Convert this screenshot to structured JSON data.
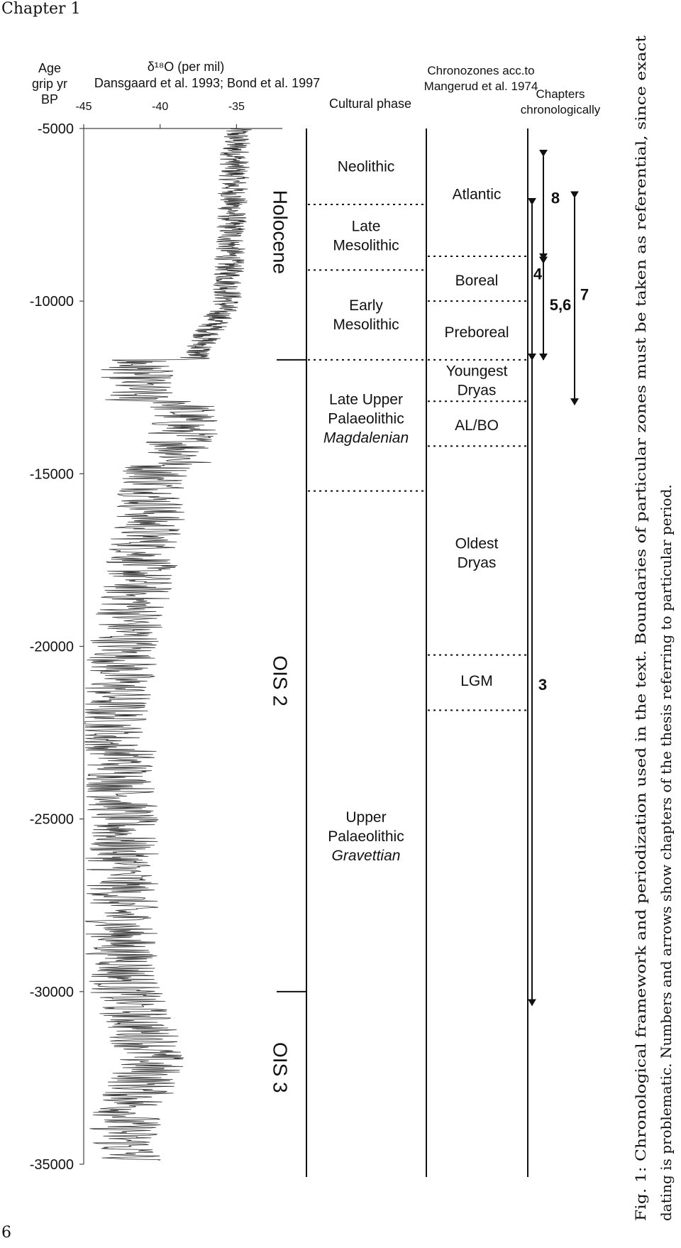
{
  "page": {
    "running_head": "Chapter 1",
    "page_number": "6"
  },
  "figure": {
    "age_axis": {
      "label_lines": [
        "Age",
        "grip yr",
        "BP"
      ],
      "ticks": [
        -5000,
        -10000,
        -15000,
        -20000,
        -25000,
        -30000,
        -35000
      ],
      "range": [
        -5000,
        -35000
      ]
    },
    "d18o_axis": {
      "label": "δ¹⁸O (per mil)",
      "source": "Dansgaard et al. 1993; Bond et al. 1997",
      "ticks": [
        "-45",
        "-40",
        "-35"
      ],
      "range": [
        -45,
        -32
      ]
    },
    "climate_labels": [
      {
        "text": "Holocene",
        "age_center": -8000
      },
      {
        "text": "OIS 2",
        "age_center": -21000
      },
      {
        "text": "OIS 3",
        "age_center": -32200
      }
    ],
    "climate_boundaries": [
      -11700,
      -30000
    ],
    "cultural": {
      "header": "Cultural phase",
      "boundaries": [
        -7200,
        -9100,
        -11700,
        -15500
      ],
      "labels": [
        {
          "lines": [
            "Neolithic"
          ],
          "italic": [],
          "age": -6100
        },
        {
          "lines": [
            "Late",
            "Mesolithic"
          ],
          "italic": [],
          "age": -8100
        },
        {
          "lines": [
            "Early",
            "Mesolithic"
          ],
          "italic": [],
          "age": -10400
        },
        {
          "lines": [
            "Late Upper",
            "Palaeolithic",
            "Magdalenian"
          ],
          "italic": [
            2
          ],
          "age": -13400
        },
        {
          "lines": [
            "Upper",
            "Palaeolithic",
            "Gravettian"
          ],
          "italic": [
            2
          ],
          "age": -25500
        }
      ]
    },
    "chronozones": {
      "header_lines": [
        "Chronozones acc.to",
        "Mangerud et al. 1974"
      ],
      "boundaries": [
        -8700,
        -10000,
        -11700,
        -12900,
        -14200,
        -20250,
        -21850
      ],
      "labels": [
        {
          "lines": [
            "Atlantic"
          ],
          "age": -6900
        },
        {
          "lines": [
            "Boreal"
          ],
          "age": -9400
        },
        {
          "lines": [
            "Preboreal"
          ],
          "age": -10900
        },
        {
          "lines": [
            "Youngest",
            "Dryas"
          ],
          "age": -12300
        },
        {
          "lines": [
            "AL/BO"
          ],
          "age": -13600
        },
        {
          "lines": [
            "Oldest",
            "Dryas"
          ],
          "age": -17300
        },
        {
          "lines": [
            "LGM"
          ],
          "age": -21000
        }
      ]
    },
    "chapters": {
      "header_lines": [
        "Chapters",
        "chronologically"
      ],
      "arrows": [
        {
          "label": "8",
          "from": -5800,
          "to": -8900,
          "label_age": -7000
        },
        {
          "label": "4",
          "from": -7200,
          "to": -11700,
          "label_age": -9200
        },
        {
          "label": "5,6",
          "from": -8800,
          "to": -11700,
          "label_age": -10100
        },
        {
          "label": "7",
          "from": -7000,
          "to": -13000,
          "label_age": -9800
        },
        {
          "label": "3",
          "from": -11700,
          "to": -30400,
          "label_age": -21100
        }
      ]
    },
    "caption_lines": [
      "Fig. 1: Chronological framework and periodization used in the text. Boundaries of particular zones must be taken as referential, since exact",
      "dating is problematic. Numbers and arrows show chapters of the thesis referring to particular period."
    ]
  }
}
